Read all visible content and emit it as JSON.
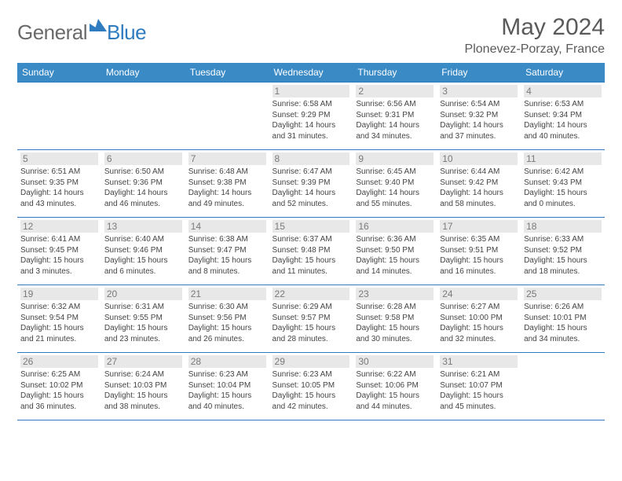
{
  "logo": {
    "general": "General",
    "blue": "Blue",
    "mark_color": "#2f7bbf"
  },
  "title": "May 2024",
  "location": "Plonevez-Porzay, France",
  "colors": {
    "header_bg": "#3a8ac6",
    "header_text": "#ffffff",
    "border": "#2f7bbf",
    "daynum_bg": "#e8e8e8",
    "daynum_text": "#7a7a7a",
    "body_text": "#444444"
  },
  "weekdays": [
    "Sunday",
    "Monday",
    "Tuesday",
    "Wednesday",
    "Thursday",
    "Friday",
    "Saturday"
  ],
  "weeks": [
    [
      null,
      null,
      null,
      {
        "n": "1",
        "sunrise": "6:58 AM",
        "sunset": "9:29 PM",
        "dl1": "Daylight: 14 hours",
        "dl2": "and 31 minutes."
      },
      {
        "n": "2",
        "sunrise": "6:56 AM",
        "sunset": "9:31 PM",
        "dl1": "Daylight: 14 hours",
        "dl2": "and 34 minutes."
      },
      {
        "n": "3",
        "sunrise": "6:54 AM",
        "sunset": "9:32 PM",
        "dl1": "Daylight: 14 hours",
        "dl2": "and 37 minutes."
      },
      {
        "n": "4",
        "sunrise": "6:53 AM",
        "sunset": "9:34 PM",
        "dl1": "Daylight: 14 hours",
        "dl2": "and 40 minutes."
      }
    ],
    [
      {
        "n": "5",
        "sunrise": "6:51 AM",
        "sunset": "9:35 PM",
        "dl1": "Daylight: 14 hours",
        "dl2": "and 43 minutes."
      },
      {
        "n": "6",
        "sunrise": "6:50 AM",
        "sunset": "9:36 PM",
        "dl1": "Daylight: 14 hours",
        "dl2": "and 46 minutes."
      },
      {
        "n": "7",
        "sunrise": "6:48 AM",
        "sunset": "9:38 PM",
        "dl1": "Daylight: 14 hours",
        "dl2": "and 49 minutes."
      },
      {
        "n": "8",
        "sunrise": "6:47 AM",
        "sunset": "9:39 PM",
        "dl1": "Daylight: 14 hours",
        "dl2": "and 52 minutes."
      },
      {
        "n": "9",
        "sunrise": "6:45 AM",
        "sunset": "9:40 PM",
        "dl1": "Daylight: 14 hours",
        "dl2": "and 55 minutes."
      },
      {
        "n": "10",
        "sunrise": "6:44 AM",
        "sunset": "9:42 PM",
        "dl1": "Daylight: 14 hours",
        "dl2": "and 58 minutes."
      },
      {
        "n": "11",
        "sunrise": "6:42 AM",
        "sunset": "9:43 PM",
        "dl1": "Daylight: 15 hours",
        "dl2": "and 0 minutes."
      }
    ],
    [
      {
        "n": "12",
        "sunrise": "6:41 AM",
        "sunset": "9:45 PM",
        "dl1": "Daylight: 15 hours",
        "dl2": "and 3 minutes."
      },
      {
        "n": "13",
        "sunrise": "6:40 AM",
        "sunset": "9:46 PM",
        "dl1": "Daylight: 15 hours",
        "dl2": "and 6 minutes."
      },
      {
        "n": "14",
        "sunrise": "6:38 AM",
        "sunset": "9:47 PM",
        "dl1": "Daylight: 15 hours",
        "dl2": "and 8 minutes."
      },
      {
        "n": "15",
        "sunrise": "6:37 AM",
        "sunset": "9:48 PM",
        "dl1": "Daylight: 15 hours",
        "dl2": "and 11 minutes."
      },
      {
        "n": "16",
        "sunrise": "6:36 AM",
        "sunset": "9:50 PM",
        "dl1": "Daylight: 15 hours",
        "dl2": "and 14 minutes."
      },
      {
        "n": "17",
        "sunrise": "6:35 AM",
        "sunset": "9:51 PM",
        "dl1": "Daylight: 15 hours",
        "dl2": "and 16 minutes."
      },
      {
        "n": "18",
        "sunrise": "6:33 AM",
        "sunset": "9:52 PM",
        "dl1": "Daylight: 15 hours",
        "dl2": "and 18 minutes."
      }
    ],
    [
      {
        "n": "19",
        "sunrise": "6:32 AM",
        "sunset": "9:54 PM",
        "dl1": "Daylight: 15 hours",
        "dl2": "and 21 minutes."
      },
      {
        "n": "20",
        "sunrise": "6:31 AM",
        "sunset": "9:55 PM",
        "dl1": "Daylight: 15 hours",
        "dl2": "and 23 minutes."
      },
      {
        "n": "21",
        "sunrise": "6:30 AM",
        "sunset": "9:56 PM",
        "dl1": "Daylight: 15 hours",
        "dl2": "and 26 minutes."
      },
      {
        "n": "22",
        "sunrise": "6:29 AM",
        "sunset": "9:57 PM",
        "dl1": "Daylight: 15 hours",
        "dl2": "and 28 minutes."
      },
      {
        "n": "23",
        "sunrise": "6:28 AM",
        "sunset": "9:58 PM",
        "dl1": "Daylight: 15 hours",
        "dl2": "and 30 minutes."
      },
      {
        "n": "24",
        "sunrise": "6:27 AM",
        "sunset": "10:00 PM",
        "dl1": "Daylight: 15 hours",
        "dl2": "and 32 minutes."
      },
      {
        "n": "25",
        "sunrise": "6:26 AM",
        "sunset": "10:01 PM",
        "dl1": "Daylight: 15 hours",
        "dl2": "and 34 minutes."
      }
    ],
    [
      {
        "n": "26",
        "sunrise": "6:25 AM",
        "sunset": "10:02 PM",
        "dl1": "Daylight: 15 hours",
        "dl2": "and 36 minutes."
      },
      {
        "n": "27",
        "sunrise": "6:24 AM",
        "sunset": "10:03 PM",
        "dl1": "Daylight: 15 hours",
        "dl2": "and 38 minutes."
      },
      {
        "n": "28",
        "sunrise": "6:23 AM",
        "sunset": "10:04 PM",
        "dl1": "Daylight: 15 hours",
        "dl2": "and 40 minutes."
      },
      {
        "n": "29",
        "sunrise": "6:23 AM",
        "sunset": "10:05 PM",
        "dl1": "Daylight: 15 hours",
        "dl2": "and 42 minutes."
      },
      {
        "n": "30",
        "sunrise": "6:22 AM",
        "sunset": "10:06 PM",
        "dl1": "Daylight: 15 hours",
        "dl2": "and 44 minutes."
      },
      {
        "n": "31",
        "sunrise": "6:21 AM",
        "sunset": "10:07 PM",
        "dl1": "Daylight: 15 hours",
        "dl2": "and 45 minutes."
      },
      null
    ]
  ],
  "labels": {
    "sunrise": "Sunrise:",
    "sunset": "Sunset:"
  }
}
